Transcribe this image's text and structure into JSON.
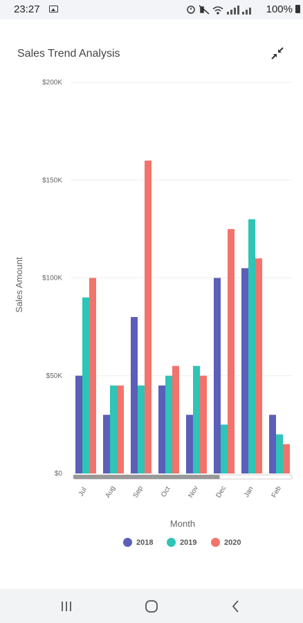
{
  "status_bar": {
    "time": "23:27",
    "battery": "100%",
    "icons": [
      "image-icon",
      "alarm-icon",
      "mute-icon",
      "wifi-icon",
      "signal-icon",
      "battery-icon"
    ]
  },
  "chart_title": "Sales Trend Analysis",
  "chart_data": {
    "type": "bar",
    "title": "Sales Trend Analysis",
    "xlabel": "Month",
    "ylabel": "Sales Amount",
    "ylim": [
      0,
      200000
    ],
    "y_ticks": [
      "$0",
      "$50K",
      "$100K",
      "$150K",
      "$200K"
    ],
    "y_tick_values": [
      0,
      50000,
      100000,
      150000,
      200000
    ],
    "categories": [
      "Jul",
      "Aug",
      "Sep",
      "Oct",
      "Nov",
      "Dec",
      "Jan",
      "Feb"
    ],
    "series": [
      {
        "name": "2018",
        "color": "#5b5fb7",
        "values": [
          50000,
          30000,
          80000,
          45000,
          30000,
          100000,
          105000,
          30000
        ]
      },
      {
        "name": "2019",
        "color": "#2ec4b6",
        "values": [
          90000,
          45000,
          45000,
          50000,
          55000,
          25000,
          130000,
          20000
        ]
      },
      {
        "name": "2020",
        "color": "#f2736b",
        "values": [
          100000,
          45000,
          160000,
          55000,
          50000,
          125000,
          110000,
          15000
        ]
      }
    ],
    "grid": true,
    "legend_position": "bottom",
    "scrollbar_visible_fraction": 0.67
  },
  "colors": {
    "status_bar_bg": "#f2f4f7",
    "nav_bar_bg": "#f1f3f5",
    "grid": "#eeeeee"
  },
  "nav_bar": {
    "icons": [
      "recent-apps-icon",
      "home-icon",
      "back-icon"
    ]
  }
}
